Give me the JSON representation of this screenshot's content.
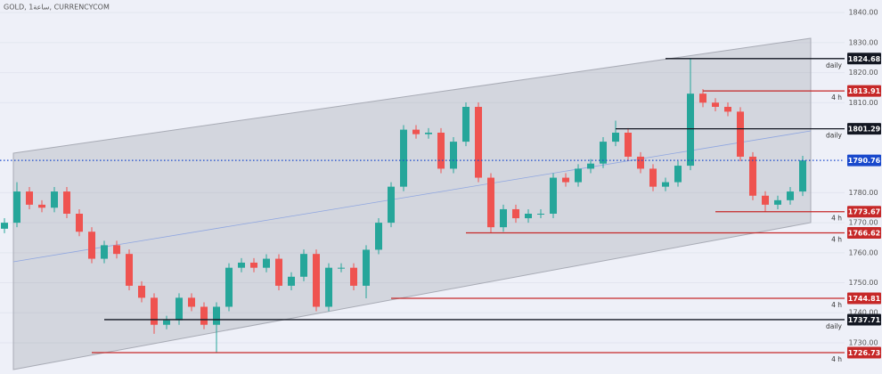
{
  "chart_data": {
    "type": "candlestick",
    "title": "GOLD, 1ساعة, CURRENCYCOM",
    "up_color": "#26a69a",
    "down_color": "#ef5350",
    "ylim": [
      1719.6,
      1844.2
    ],
    "yticks": [
      {
        "value": 1840,
        "label": "1840.00"
      },
      {
        "value": 1830,
        "label": "1830.00"
      },
      {
        "value": 1820,
        "label": "1820.00"
      },
      {
        "value": 1810,
        "label": "1810.00"
      },
      {
        "value": 1780,
        "label": "1780.00"
      },
      {
        "value": 1770,
        "label": "1770.00"
      },
      {
        "value": 1760,
        "label": "1760.00"
      },
      {
        "value": 1750,
        "label": "1750.00"
      },
      {
        "value": 1740,
        "label": "1740.00"
      },
      {
        "value": 1730,
        "label": "1730.00"
      }
    ],
    "open": [
      1768,
      1770,
      1780.4,
      1776,
      1775,
      1780.4,
      1773,
      1767,
      1758,
      1762.5,
      1759.6,
      1749,
      1745,
      1736,
      1737.5,
      1745,
      1742,
      1736,
      1742,
      1755,
      1756.7,
      1755,
      1758,
      1749,
      1752,
      1759.6,
      1742,
      1755,
      1755,
      1749,
      1761,
      1770,
      1782,
      1801,
      1799.5,
      1800,
      1788,
      1797,
      1808.6,
      1785,
      1768.5,
      1774.5,
      1771.5,
      1773,
      1773,
      1785,
      1783.5,
      1788,
      1789.7,
      1797,
      1800,
      1792,
      1788,
      1782,
      1783.5,
      1789,
      1813,
      1810,
      1808.6,
      1807,
      1792,
      1779,
      1776,
      1777.5,
      1780.4
    ],
    "high": [
      1771.5,
      1783.5,
      1781.9,
      1777.5,
      1781.9,
      1781.9,
      1774.5,
      1768.5,
      1764,
      1764,
      1761.1,
      1750.5,
      1746.5,
      1739,
      1746.5,
      1746.5,
      1743.5,
      1743.5,
      1756.5,
      1758.2,
      1758.2,
      1759.5,
      1759.5,
      1753.5,
      1761.1,
      1761.1,
      1756.5,
      1756.5,
      1756.5,
      1762.5,
      1771.5,
      1783.5,
      1802.5,
      1802.5,
      1801.5,
      1801.5,
      1798.5,
      1810.1,
      1810.1,
      1786.5,
      1776,
      1776,
      1774.5,
      1774.5,
      1786.5,
      1786.5,
      1789.5,
      1791.2,
      1798.5,
      1804,
      1801.5,
      1793.5,
      1789.5,
      1785,
      1790.5,
      1824.68,
      1814.5,
      1811.5,
      1810.1,
      1808.5,
      1793.5,
      1780.5,
      1779,
      1781.9,
      1792.3
    ],
    "low": [
      1766.5,
      1768.5,
      1774.5,
      1773.5,
      1773.5,
      1771.5,
      1765.5,
      1756.5,
      1756.5,
      1758.1,
      1747.5,
      1743.5,
      1733,
      1734.5,
      1736,
      1740.5,
      1734.5,
      1726.73,
      1740.5,
      1753.5,
      1753.5,
      1753.5,
      1747.5,
      1747.5,
      1750.5,
      1740.5,
      1740.5,
      1753.5,
      1747.5,
      1744.81,
      1759.5,
      1768.5,
      1780.5,
      1798,
      1798,
      1786.5,
      1786.5,
      1795.5,
      1783.5,
      1766.62,
      1767,
      1770,
      1770,
      1771.5,
      1771.5,
      1782,
      1782,
      1786.5,
      1788.2,
      1795.5,
      1790.5,
      1786.5,
      1780.5,
      1780.5,
      1782,
      1787.5,
      1808.5,
      1807.1,
      1805.5,
      1790.5,
      1777.5,
      1773.67,
      1774.5,
      1776,
      1778.9
    ],
    "close": [
      1770,
      1780.4,
      1776,
      1775,
      1780.4,
      1773,
      1767,
      1758,
      1762.5,
      1759.6,
      1749,
      1745,
      1736,
      1737.5,
      1745,
      1742,
      1736,
      1742,
      1755,
      1756.7,
      1755,
      1758,
      1749,
      1752,
      1759.6,
      1742,
      1755,
      1755,
      1749,
      1761,
      1770,
      1782,
      1801,
      1799.5,
      1800,
      1788,
      1797,
      1808.6,
      1785,
      1768.5,
      1774.5,
      1771.5,
      1773,
      1773,
      1785,
      1783.5,
      1788,
      1789.7,
      1797,
      1800,
      1792,
      1788,
      1782,
      1783.5,
      1789,
      1813,
      1810,
      1808.6,
      1807,
      1792,
      1779,
      1776,
      1777.5,
      1780.4,
      1790.76
    ],
    "levels": [
      {
        "value": 1824.68,
        "note": "daily",
        "color": "#131722",
        "from": 53
      },
      {
        "value": 1813.91,
        "note": "4 h",
        "color": "#c62828",
        "from": 56
      },
      {
        "value": 1801.29,
        "note": "daily",
        "color": "#131722",
        "from": 49
      },
      {
        "value": 1790.76,
        "color": "#1848cc",
        "dotted": true,
        "from": 0
      },
      {
        "value": 1773.67,
        "note": "4 h",
        "color": "#c62828",
        "from": 57
      },
      {
        "value": 1766.62,
        "note": "4 h",
        "color": "#c62828",
        "from": 37
      },
      {
        "value": 1744.81,
        "note": "4 h",
        "color": "#c62828",
        "from": 31
      },
      {
        "value": 1737.71,
        "note": "daily",
        "color": "#131722",
        "from": 8
      },
      {
        "value": 1726.73,
        "note": "4 h",
        "color": "#c62828",
        "from": 7
      }
    ]
  }
}
